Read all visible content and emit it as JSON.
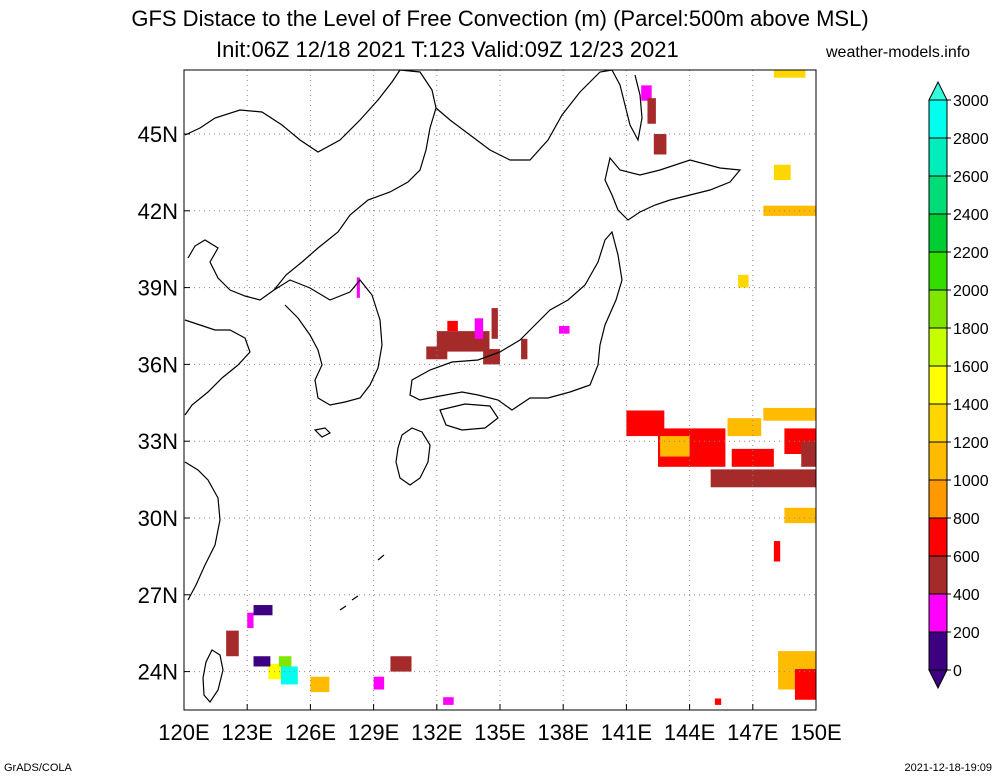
{
  "header": {
    "title_line1": "GFS Distace to the Level of Free Convection (m) (Parcel:500m above MSL)",
    "title_line2": "Init:06Z 12/18 2021 T:123 Valid:09Z 12/23 2021",
    "site": "weather-models.info"
  },
  "footer": {
    "left": "GrADS/COLA",
    "right": "2021-12-18-19:09"
  },
  "map": {
    "lon_range": [
      120,
      150
    ],
    "lat_range": [
      22.5,
      47.5
    ],
    "lat_labels": [
      "45N",
      "42N",
      "39N",
      "36N",
      "33N",
      "30N",
      "27N",
      "24N"
    ],
    "lat_values": [
      45,
      42,
      39,
      36,
      33,
      30,
      27,
      24
    ],
    "lon_labels": [
      "120E",
      "123E",
      "126E",
      "129E",
      "132E",
      "135E",
      "138E",
      "141E",
      "144E",
      "147E",
      "150E"
    ],
    "lon_values": [
      120,
      123,
      126,
      129,
      132,
      135,
      138,
      141,
      144,
      147,
      150
    ]
  },
  "colorbar": {
    "labels": [
      "0",
      "200",
      "400",
      "600",
      "800",
      "1000",
      "1200",
      "1400",
      "1600",
      "1800",
      "2000",
      "2200",
      "2400",
      "2600",
      "2800",
      "3000"
    ],
    "colors": [
      "#3c0080",
      "#ff00ff",
      "#a52a2a",
      "#ff0000",
      "#ff9900",
      "#ffbb00",
      "#ffd700",
      "#ffff00",
      "#c8ff00",
      "#80e600",
      "#33dd00",
      "#00cc33",
      "#00dd77",
      "#00eebb",
      "#00ffee"
    ],
    "under_color": "#3c0080",
    "over_color": "#33ffdd"
  },
  "fields": [
    {
      "lon": 132.0,
      "lat": 36.5,
      "w": 2.5,
      "h": 0.8,
      "level": 400
    },
    {
      "lon": 131.5,
      "lat": 36.2,
      "w": 1.0,
      "h": 0.5,
      "level": 400
    },
    {
      "lon": 133.8,
      "lat": 37.0,
      "w": 0.4,
      "h": 0.8,
      "level": 200
    },
    {
      "lon": 134.2,
      "lat": 36.0,
      "w": 0.8,
      "h": 0.6,
      "level": 400
    },
    {
      "lon": 132.5,
      "lat": 37.3,
      "w": 0.5,
      "h": 0.4,
      "level": 600
    },
    {
      "lon": 134.6,
      "lat": 37.0,
      "w": 0.3,
      "h": 1.2,
      "level": 400
    },
    {
      "lon": 136.0,
      "lat": 36.2,
      "w": 0.3,
      "h": 0.8,
      "level": 400
    },
    {
      "lon": 137.8,
      "lat": 37.2,
      "w": 0.5,
      "h": 0.3,
      "level": 200
    },
    {
      "lon": 128.2,
      "lat": 38.6,
      "w": 0.15,
      "h": 0.8,
      "level": 200
    },
    {
      "lon": 141.7,
      "lat": 46.3,
      "w": 0.5,
      "h": 0.6,
      "level": 200
    },
    {
      "lon": 142.0,
      "lat": 45.4,
      "w": 0.4,
      "h": 1.0,
      "level": 400
    },
    {
      "lon": 142.3,
      "lat": 44.2,
      "w": 0.6,
      "h": 0.8,
      "level": 400
    },
    {
      "lon": 141.0,
      "lat": 33.2,
      "w": 1.8,
      "h": 1.0,
      "level": 600
    },
    {
      "lon": 142.5,
      "lat": 32.0,
      "w": 3.2,
      "h": 1.5,
      "level": 600
    },
    {
      "lon": 145.0,
      "lat": 31.2,
      "w": 5.0,
      "h": 0.7,
      "level": 400
    },
    {
      "lon": 146.0,
      "lat": 32.0,
      "w": 2.0,
      "h": 0.7,
      "level": 600
    },
    {
      "lon": 148.5,
      "lat": 32.5,
      "w": 1.5,
      "h": 1.0,
      "level": 600
    },
    {
      "lon": 149.3,
      "lat": 32.0,
      "w": 0.7,
      "h": 1.0,
      "level": 400
    },
    {
      "lon": 142.6,
      "lat": 32.4,
      "w": 1.4,
      "h": 0.8,
      "level": 1000
    },
    {
      "lon": 145.8,
      "lat": 33.2,
      "w": 1.6,
      "h": 0.7,
      "level": 1000
    },
    {
      "lon": 147.5,
      "lat": 33.8,
      "w": 2.5,
      "h": 0.5,
      "level": 1000
    },
    {
      "lon": 148.5,
      "lat": 29.8,
      "w": 1.5,
      "h": 0.6,
      "level": 1000
    },
    {
      "lon": 148.0,
      "lat": 28.3,
      "w": 0.3,
      "h": 0.8,
      "level": 600
    },
    {
      "lon": 147.5,
      "lat": 41.8,
      "w": 2.5,
      "h": 0.4,
      "level": 1000
    },
    {
      "lon": 148.0,
      "lat": 43.2,
      "w": 0.8,
      "h": 0.6,
      "level": 1200
    },
    {
      "lon": 146.3,
      "lat": 39.0,
      "w": 0.5,
      "h": 0.5,
      "level": 1200
    },
    {
      "lon": 148.0,
      "lat": 47.2,
      "w": 1.5,
      "h": 0.3,
      "level": 1200
    },
    {
      "lon": 148.2,
      "lat": 23.3,
      "w": 1.8,
      "h": 1.5,
      "level": 1000
    },
    {
      "lon": 149.0,
      "lat": 22.9,
      "w": 1.0,
      "h": 1.2,
      "level": 600
    },
    {
      "lon": 122.0,
      "lat": 24.6,
      "w": 0.6,
      "h": 1.0,
      "level": 400
    },
    {
      "lon": 123.3,
      "lat": 26.2,
      "w": 0.9,
      "h": 0.4,
      "level": 0
    },
    {
      "lon": 123.0,
      "lat": 25.7,
      "w": 0.3,
      "h": 0.6,
      "level": 200
    },
    {
      "lon": 124.0,
      "lat": 23.7,
      "w": 0.9,
      "h": 0.6,
      "level": 1400
    },
    {
      "lon": 124.6,
      "lat": 23.5,
      "w": 0.8,
      "h": 0.7,
      "level": 2800
    },
    {
      "lon": 124.5,
      "lat": 24.2,
      "w": 0.6,
      "h": 0.4,
      "level": 1800
    },
    {
      "lon": 123.3,
      "lat": 24.2,
      "w": 0.8,
      "h": 0.4,
      "level": 0
    },
    {
      "lon": 126.0,
      "lat": 23.2,
      "w": 0.9,
      "h": 0.6,
      "level": 1000
    },
    {
      "lon": 129.8,
      "lat": 24.0,
      "w": 1.0,
      "h": 0.6,
      "level": 400
    },
    {
      "lon": 129.0,
      "lat": 23.3,
      "w": 0.5,
      "h": 0.5,
      "level": 200
    },
    {
      "lon": 132.3,
      "lat": 22.7,
      "w": 0.5,
      "h": 0.3,
      "level": 200
    },
    {
      "lon": 145.2,
      "lat": 22.7,
      "w": 0.3,
      "h": 0.25,
      "level": 600
    }
  ]
}
